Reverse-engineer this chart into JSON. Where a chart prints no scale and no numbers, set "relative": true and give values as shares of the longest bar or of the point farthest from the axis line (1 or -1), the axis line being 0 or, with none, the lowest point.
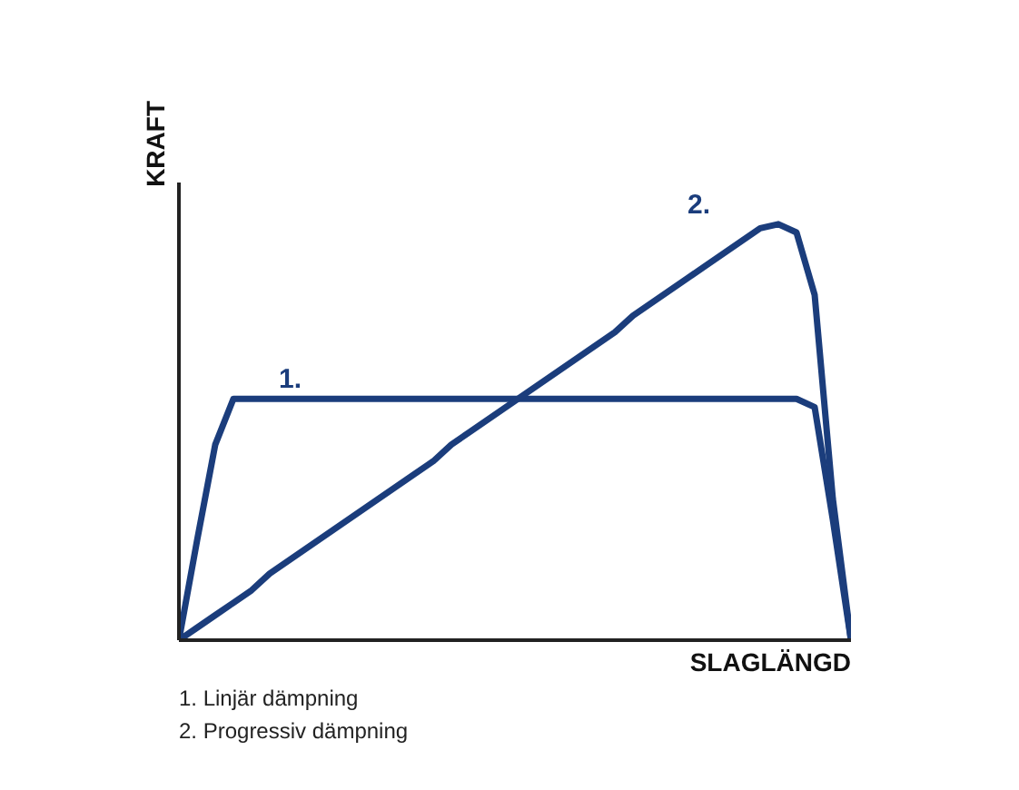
{
  "chart_data": {
    "type": "line",
    "relative": true,
    "xlabel": "SLAGLÄNGD",
    "ylabel": "KRAFT",
    "marker": "none",
    "line_style": "solid",
    "categories": [
      null,
      null,
      null,
      null,
      null,
      null,
      null,
      null,
      null,
      null,
      null,
      null,
      null,
      null,
      null,
      null,
      null,
      null,
      null,
      null,
      null,
      null,
      null,
      null,
      null,
      null,
      null,
      null,
      null,
      null,
      null,
      null,
      null,
      null,
      null,
      null,
      null,
      null
    ],
    "series": [
      {
        "name": "1.",
        "color": "#1b3d7c",
        "values": [
          0,
          0.24,
          0.47,
          0.58,
          0.58,
          0.58,
          0.58,
          0.58,
          0.58,
          0.58,
          0.58,
          0.58,
          0.58,
          0.58,
          0.58,
          0.58,
          0.58,
          0.58,
          0.58,
          0.58,
          0.58,
          0.58,
          0.58,
          0.58,
          0.58,
          0.58,
          0.58,
          0.58,
          0.58,
          0.58,
          0.58,
          0.58,
          0.58,
          0.58,
          0.58,
          0.56,
          0.29,
          0
        ]
      },
      {
        "name": "2.",
        "color": "#1b3d7c",
        "values": [
          0,
          0.03,
          0.06,
          0.09,
          0.12,
          0.16,
          0.19,
          0.22,
          0.25,
          0.28,
          0.31,
          0.34,
          0.37,
          0.4,
          0.43,
          0.47,
          0.5,
          0.53,
          0.56,
          0.59,
          0.62,
          0.65,
          0.68,
          0.71,
          0.74,
          0.78,
          0.81,
          0.84,
          0.87,
          0.9,
          0.93,
          0.96,
          0.99,
          1,
          0.98,
          0.83,
          0.34,
          0
        ]
      }
    ],
    "annotations": [
      "1. Linjär dämpning",
      "2. Progressiv dämpning"
    ]
  }
}
